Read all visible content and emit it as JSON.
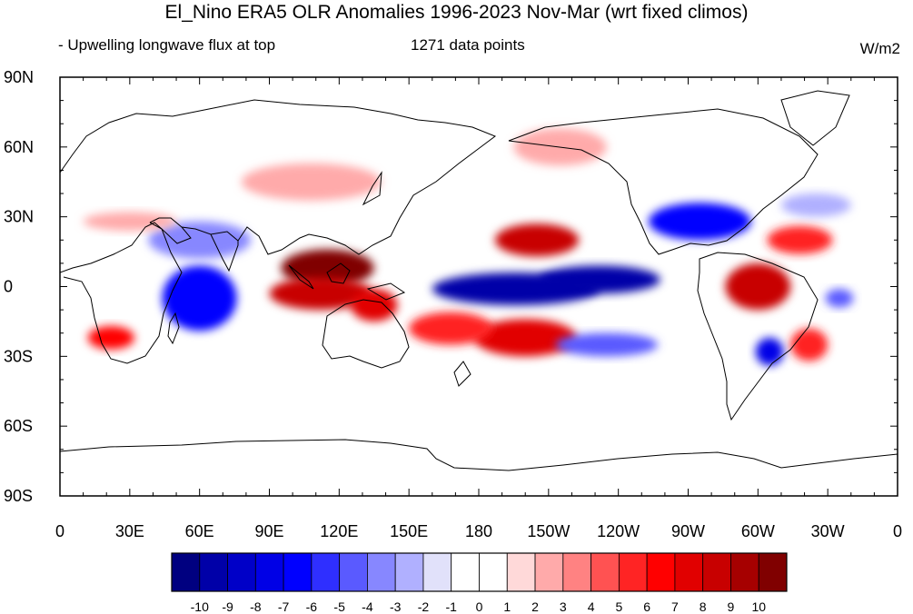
{
  "title": "El_Nino ERA5 OLR Anomalies 1996-2023 Nov-Mar (wrt fixed climos)",
  "subtitle_left": "- Upwelling longwave flux at top",
  "subtitle_center": "1271 data points",
  "units": "W/m2",
  "map": {
    "projection": "cylindrical-equidistant",
    "lon_range": [
      0,
      360
    ],
    "lat_range": [
      -90,
      90
    ],
    "lat_tick_labels": [
      "90N",
      "60N",
      "30N",
      "0",
      "30S",
      "60S",
      "90S"
    ],
    "lat_tick_values": [
      90,
      60,
      30,
      0,
      -30,
      -60,
      -90
    ],
    "lon_tick_labels": [
      "0",
      "30E",
      "60E",
      "90E",
      "120E",
      "150E",
      "180",
      "150W",
      "120W",
      "90W",
      "60W",
      "30W",
      "0"
    ],
    "lon_tick_values": [
      0,
      30,
      60,
      90,
      120,
      150,
      180,
      210,
      240,
      270,
      300,
      330,
      360
    ],
    "anomaly_regions": [
      {
        "lon": 196,
        "lat": -1,
        "rlon": 36,
        "rlat": 7,
        "value": -10
      },
      {
        "lon": 232,
        "lat": 3,
        "rlon": 26,
        "rlat": 6,
        "value": -10
      },
      {
        "lon": 115,
        "lat": 8,
        "rlon": 20,
        "rlat": 8,
        "value": 10
      },
      {
        "lon": 112,
        "lat": -3,
        "rlon": 22,
        "rlat": 7,
        "value": 8
      },
      {
        "lon": 135,
        "lat": -8,
        "rlon": 10,
        "rlat": 7,
        "value": 7
      },
      {
        "lon": 205,
        "lat": 20,
        "rlon": 18,
        "rlat": 7,
        "value": 8
      },
      {
        "lon": 200,
        "lat": -22,
        "rlon": 22,
        "rlat": 8,
        "value": 7
      },
      {
        "lon": 168,
        "lat": -18,
        "rlon": 18,
        "rlat": 7,
        "value": 5
      },
      {
        "lon": 300,
        "lat": 0,
        "rlon": 14,
        "rlat": 10,
        "value": 8
      },
      {
        "lon": 318,
        "lat": 20,
        "rlon": 14,
        "rlat": 6,
        "value": 5
      },
      {
        "lon": 322,
        "lat": -25,
        "rlon": 8,
        "rlat": 7,
        "value": 5
      },
      {
        "lon": 22,
        "lat": -22,
        "rlon": 10,
        "rlat": 5,
        "value": 6
      },
      {
        "lon": 60,
        "lat": -5,
        "rlon": 16,
        "rlat": 14,
        "value": -7
      },
      {
        "lon": 60,
        "lat": 20,
        "rlon": 22,
        "rlat": 8,
        "value": -4
      },
      {
        "lon": 275,
        "lat": 28,
        "rlon": 22,
        "rlat": 8,
        "value": -7
      },
      {
        "lon": 235,
        "lat": -25,
        "rlon": 22,
        "rlat": 5,
        "value": -5
      },
      {
        "lon": 305,
        "lat": -28,
        "rlon": 6,
        "rlat": 6,
        "value": -8
      },
      {
        "lon": 335,
        "lat": -5,
        "rlon": 6,
        "rlat": 4,
        "value": -5
      },
      {
        "lon": 325,
        "lat": 35,
        "rlon": 15,
        "rlat": 5,
        "value": -3
      },
      {
        "lon": 108,
        "lat": 45,
        "rlon": 30,
        "rlat": 8,
        "value": 2
      },
      {
        "lon": 215,
        "lat": 60,
        "rlon": 20,
        "rlat": 8,
        "value": 2
      },
      {
        "lon": 30,
        "lat": 28,
        "rlon": 20,
        "rlat": 4,
        "value": 2
      }
    ]
  },
  "colorbar": {
    "colors": [
      "#000080",
      "#0000a8",
      "#0000c8",
      "#0000e6",
      "#0000ff",
      "#2f2fff",
      "#5a5aff",
      "#8787ff",
      "#b0b0ff",
      "#e1e1fa",
      "#ffffff",
      "#ffffff",
      "#ffd9d9",
      "#ffaaaa",
      "#ff8282",
      "#ff5252",
      "#ff2424",
      "#ff0000",
      "#e10000",
      "#c80000",
      "#a60000",
      "#800000"
    ],
    "labels": [
      "-10",
      "-9",
      "-8",
      "-7",
      "-6",
      "-5",
      "-4",
      "-3",
      "-2",
      "-1",
      "0",
      "1",
      "2",
      "3",
      "4",
      "5",
      "6",
      "7",
      "8",
      "9",
      "10"
    ]
  }
}
